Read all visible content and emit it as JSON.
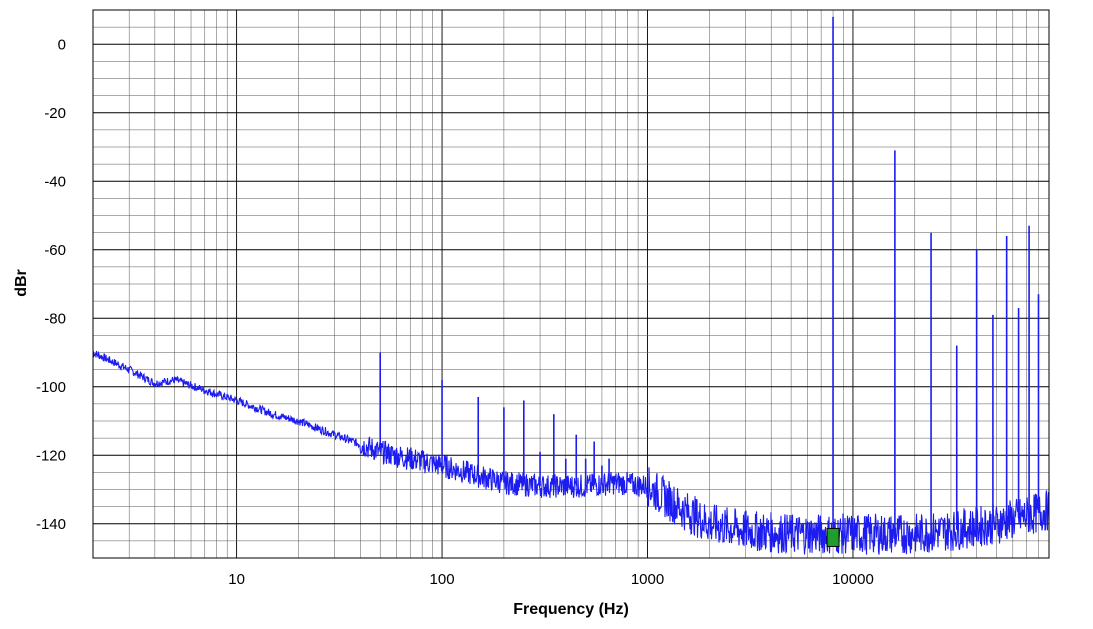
{
  "chart_data": {
    "type": "line",
    "xlabel": "Frequency (Hz)",
    "ylabel": "dBr",
    "xscale": "log",
    "xlim": [
      2,
      90000
    ],
    "ylim": [
      -150,
      10
    ],
    "grid": true,
    "x_ticks": [
      {
        "value": 10,
        "label": "10"
      },
      {
        "value": 100,
        "label": "100"
      },
      {
        "value": 1000,
        "label": "1000"
      },
      {
        "value": 10000,
        "label": "10000"
      }
    ],
    "y_ticks": [
      {
        "value": 0,
        "label": "0"
      },
      {
        "value": -20,
        "label": "-20"
      },
      {
        "value": -40,
        "label": "-40"
      },
      {
        "value": -60,
        "label": "-60"
      },
      {
        "value": -80,
        "label": "-80"
      },
      {
        "value": -100,
        "label": "-100"
      },
      {
        "value": -120,
        "label": "-120"
      },
      {
        "value": -140,
        "label": "-140"
      }
    ],
    "series": [
      {
        "color": "#1c1cf0",
        "noise_floor": [
          {
            "x": 2,
            "y": -90
          },
          {
            "x": 3,
            "y": -95
          },
          {
            "x": 4,
            "y": -99
          },
          {
            "x": 5,
            "y": -98
          },
          {
            "x": 7,
            "y": -101
          },
          {
            "x": 10,
            "y": -104
          },
          {
            "x": 15,
            "y": -108
          },
          {
            "x": 20,
            "y": -110
          },
          {
            "x": 30,
            "y": -114
          },
          {
            "x": 50,
            "y": -119
          },
          {
            "x": 70,
            "y": -121
          },
          {
            "x": 100,
            "y": -123
          },
          {
            "x": 150,
            "y": -126
          },
          {
            "x": 200,
            "y": -128
          },
          {
            "x": 300,
            "y": -129
          },
          {
            "x": 500,
            "y": -129
          },
          {
            "x": 700,
            "y": -128
          },
          {
            "x": 1000,
            "y": -129
          },
          {
            "x": 1500,
            "y": -136
          },
          {
            "x": 2000,
            "y": -140
          },
          {
            "x": 3000,
            "y": -142
          },
          {
            "x": 5000,
            "y": -143
          },
          {
            "x": 8000,
            "y": -143
          },
          {
            "x": 12000,
            "y": -143
          },
          {
            "x": 20000,
            "y": -143
          },
          {
            "x": 30000,
            "y": -142
          },
          {
            "x": 50000,
            "y": -140
          },
          {
            "x": 90000,
            "y": -136
          }
        ],
        "peaks": [
          {
            "x": 50,
            "y": -90
          },
          {
            "x": 100,
            "y": -98
          },
          {
            "x": 150,
            "y": -103
          },
          {
            "x": 200,
            "y": -106
          },
          {
            "x": 250,
            "y": -104
          },
          {
            "x": 300,
            "y": -119
          },
          {
            "x": 350,
            "y": -108
          },
          {
            "x": 400,
            "y": -121
          },
          {
            "x": 450,
            "y": -114
          },
          {
            "x": 500,
            "y": -121
          },
          {
            "x": 550,
            "y": -116
          },
          {
            "x": 600,
            "y": -123
          },
          {
            "x": 650,
            "y": -121
          },
          {
            "x": 8000,
            "y": 8
          },
          {
            "x": 16000,
            "y": -31
          },
          {
            "x": 24000,
            "y": -55
          },
          {
            "x": 32000,
            "y": -88
          },
          {
            "x": 40000,
            "y": -60
          },
          {
            "x": 48000,
            "y": -79
          },
          {
            "x": 56000,
            "y": -56
          },
          {
            "x": 64000,
            "y": -77
          },
          {
            "x": 72000,
            "y": -53
          },
          {
            "x": 80000,
            "y": -73
          }
        ]
      }
    ],
    "marker": {
      "x": 8000,
      "y": -144,
      "color": "#1f9e2f"
    }
  }
}
